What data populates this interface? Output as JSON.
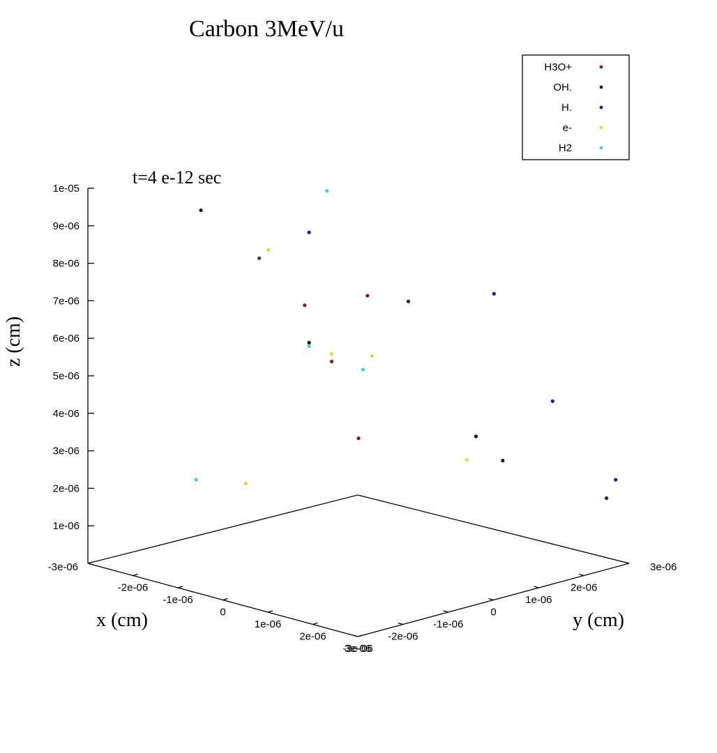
{
  "chart_data": {
    "type": "scatter",
    "projection": "3d",
    "title": "Carbon 3MeV/u",
    "annotation": "t=4 e-12 sec",
    "xlabel": "x (cm)",
    "ylabel": "y (cm)",
    "zlabel": "z (cm)",
    "xlim": [
      -3e-06,
      3e-06
    ],
    "ylim": [
      -3e-06,
      3e-06
    ],
    "zlim": [
      0,
      1e-05
    ],
    "x_ticks": [
      "-3e-06",
      "-2e-06",
      "-1e-06",
      "0",
      "1e-06",
      "2e-06",
      "3e-06"
    ],
    "y_ticks": [
      "-3e-06",
      "-2e-06",
      "-1e-06",
      "0",
      "1e-06",
      "2e-06",
      "3e-06"
    ],
    "z_ticks": [
      "1e-06",
      "2e-06",
      "3e-06",
      "4e-06",
      "5e-06",
      "6e-06",
      "7e-06",
      "8e-06",
      "9e-06",
      "1e-05"
    ],
    "legend_position": "top-right",
    "grid": false,
    "series": [
      {
        "name": "H3O+",
        "color": "#8b1a1a",
        "points": [
          [
            -1.8e-06,
            6e-07,
            6.1e-06
          ],
          [
            -1.5e-06,
            9e-07,
            4.6e-06
          ],
          [
            -1e-06,
            -1.2e-06,
            8.2e-06
          ],
          [
            1e-07,
            -1e-07,
            3.4e-06
          ],
          [
            2e-07,
            0.0,
            7.2e-06
          ]
        ]
      },
      {
        "name": "OH.",
        "color": "#1a1a1a",
        "points": [
          [
            -3e-06,
            -5e-07,
            8.6e-06
          ],
          [
            -1.6e-06,
            5e-07,
            5.2e-06
          ],
          [
            -5e-07,
            1.6e-06,
            6.3e-06
          ],
          [
            4e-07,
            2.2e-06,
            2.8e-06
          ],
          [
            2e-06,
            1.2e-06,
            3e-06
          ]
        ]
      },
      {
        "name": "H.",
        "color": "#1a1aa6",
        "points": [
          [
            -1.2e-06,
            1e-07,
            8.4e-06
          ],
          [
            6e-07,
            2.4e-06,
            6.6e-06
          ],
          [
            1.5e-06,
            2.8e-06,
            3.9e-06
          ],
          [
            3e-06,
            2.5e-06,
            1.9e-06
          ],
          [
            2.5e-06,
            3.2e-06,
            2e-06
          ]
        ]
      },
      {
        "name": "e-",
        "color": "#f0d040",
        "points": [
          [
            -1.7e-06,
            -3e-07,
            7.9e-06
          ],
          [
            -1.2e-06,
            6e-07,
            5e-06
          ],
          [
            1e-07,
            2e-07,
            5.5e-06
          ],
          [
            8e-07,
            1.6e-06,
            2.5e-06
          ],
          [
            -1.6e-06,
            -9e-07,
            1.9e-06
          ]
        ]
      },
      {
        "name": "H2",
        "color": "#40d0e0",
        "points": [
          [
            -4e-07,
            -3e-07,
            9.9e-06
          ],
          [
            -2e-06,
            -1.6e-06,
            2.1e-06
          ],
          [
            -1.3e-06,
            2e-07,
            5.3e-06
          ],
          [
            1e-07,
            0.0,
            5.2e-06
          ]
        ]
      }
    ]
  }
}
